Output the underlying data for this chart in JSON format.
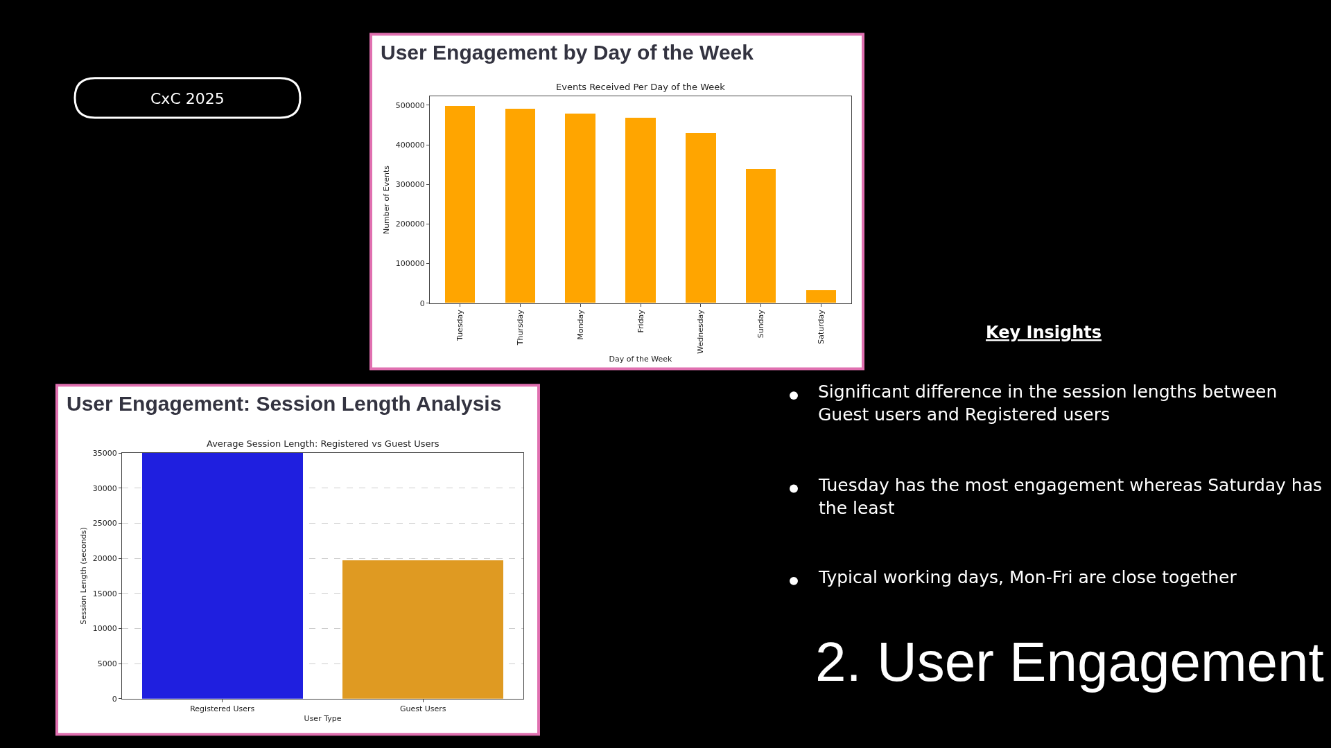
{
  "chart_data": [
    {
      "type": "bar",
      "title": "User Engagement by Day of the Week",
      "subtitle": "Events Received Per Day of the Week",
      "xlabel": "Day of the Week",
      "ylabel": "Number of Events",
      "categories": [
        "Tuesday",
        "Thursday",
        "Monday",
        "Friday",
        "Wednesday",
        "Sunday",
        "Saturday"
      ],
      "values": [
        497000,
        491000,
        479000,
        467000,
        429000,
        338000,
        32000
      ],
      "color": "#ffa500",
      "ylim": [
        0,
        522000
      ],
      "yticks": [
        0,
        100000,
        200000,
        300000,
        400000,
        500000
      ],
      "grid": false
    },
    {
      "type": "bar",
      "title": "User Engagement: Session Length Analysis",
      "subtitle": "Average Session Length: Registered vs Guest Users",
      "xlabel": "User Type",
      "ylabel": "Session Length (seconds)",
      "categories": [
        "Registered Users",
        "Guest Users"
      ],
      "values": [
        35000,
        19700
      ],
      "colors": [
        "#1f1fdf",
        "#df9a22"
      ],
      "ylim": [
        0,
        35000
      ],
      "yticks": [
        0,
        5000,
        10000,
        15000,
        20000,
        25000,
        30000,
        35000
      ],
      "grid": "y"
    },
    {
      "type": "other",
      "title": "2. User Engagement",
      "subtitle": "Key Insights",
      "annotations": [
        "CxC 2025",
        "Significant difference in the session lengths between Guest users and Registered users",
        "Tuesday has the most engagement whereas Saturday has the least",
        "Typical working days, Mon-Fri are close together"
      ]
    }
  ]
}
